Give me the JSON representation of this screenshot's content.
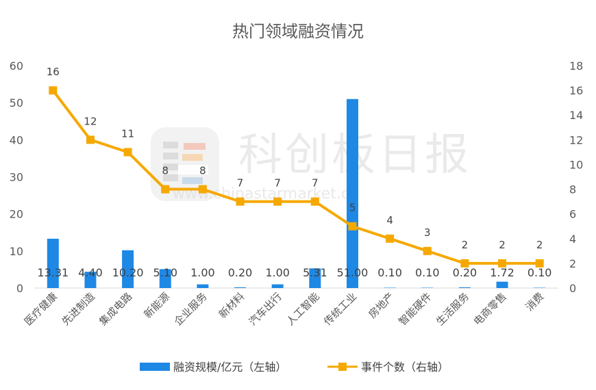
{
  "chart_data": {
    "type": "bar+line",
    "title": "热门领域融资情况",
    "categories": [
      "医疗健康",
      "先进制造",
      "集成电路",
      "新能源",
      "企业服务",
      "新材料",
      "汽车出行",
      "人工智能",
      "传统工业",
      "房地产",
      "智能硬件",
      "生活服务",
      "电商零售",
      "消费"
    ],
    "series": [
      {
        "name": "融资规模/亿元（左轴）",
        "type": "bar",
        "axis": "left",
        "color": "#1e88e5",
        "values": [
          13.31,
          4.4,
          10.2,
          5.1,
          1.0,
          0.2,
          1.0,
          5.31,
          51.0,
          0.1,
          0.1,
          0.2,
          1.72,
          0.1
        ],
        "labels": [
          "13.31",
          "4.40",
          "10.20",
          "5.10",
          "1.00",
          "0.20",
          "1.00",
          "5.31",
          "51.00",
          "0.10",
          "0.10",
          "0.20",
          "1.72",
          "0.10"
        ]
      },
      {
        "name": "事件个数（右轴）",
        "type": "line",
        "axis": "right",
        "color": "#f5a800",
        "values": [
          16,
          12,
          11,
          8,
          8,
          7,
          7,
          7,
          5,
          4,
          3,
          2,
          2,
          2
        ],
        "labels": [
          "16",
          "12",
          "11",
          "8",
          "8",
          "7",
          "7",
          "7",
          "5",
          "4",
          "3",
          "2",
          "2",
          "2"
        ]
      }
    ],
    "ylim_left": [
      0,
      60
    ],
    "yticks_left": [
      "0",
      "10",
      "20",
      "30",
      "40",
      "50",
      "60"
    ],
    "ylim_right": [
      0,
      18
    ],
    "yticks_right": [
      "0",
      "2",
      "4",
      "6",
      "8",
      "10",
      "12",
      "14",
      "16",
      "18"
    ],
    "grid": false,
    "legend_position": "bottom"
  },
  "watermark": {
    "brand": "科创板日报",
    "url": "www.chinastarmarket.cn"
  }
}
